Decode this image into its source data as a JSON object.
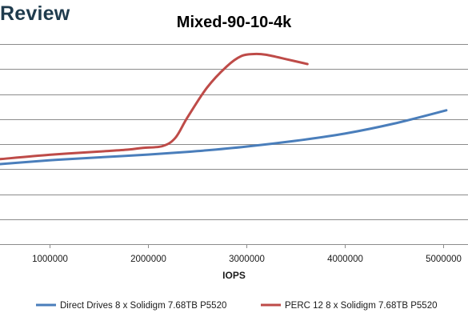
{
  "watermark": "Review",
  "chart_data": {
    "type": "line",
    "title": "Mixed-90-10-4k",
    "xlabel": "IOPS",
    "ylabel": "",
    "xlim": [
      500000,
      5250000
    ],
    "ylim": [
      0,
      8
    ],
    "y_gridlines": [
      1,
      2,
      3,
      4,
      5,
      6,
      7,
      8
    ],
    "x_ticks": [
      1000000,
      2000000,
      3000000,
      4000000,
      5000000
    ],
    "x_tick_labels": [
      "1000000",
      "2000000",
      "3000000",
      "4000000",
      "5000000"
    ],
    "grid": true,
    "legend_position": "bottom",
    "series": [
      {
        "name": "Direct Drives 8 x Solidigm 7.68TB P5520",
        "color": "#4a7ebb",
        "x": [
          500000,
          1000000,
          1500000,
          2000000,
          2500000,
          3000000,
          3500000,
          4000000,
          4500000,
          5030000
        ],
        "y": [
          3.2,
          3.35,
          3.47,
          3.58,
          3.72,
          3.9,
          4.13,
          4.42,
          4.82,
          5.35
        ]
      },
      {
        "name": "PERC 12 8 x Solidigm 7.68TB P5520",
        "color": "#be4b48",
        "x": [
          500000,
          1000000,
          1500000,
          1800000,
          1950000,
          2150000,
          2280000,
          2400000,
          2600000,
          2800000,
          2950000,
          3080000,
          3200000,
          3400000,
          3620000
        ],
        "y": [
          3.4,
          3.57,
          3.7,
          3.78,
          3.85,
          3.92,
          4.25,
          5.05,
          6.25,
          7.1,
          7.52,
          7.6,
          7.57,
          7.4,
          7.2
        ]
      }
    ]
  }
}
